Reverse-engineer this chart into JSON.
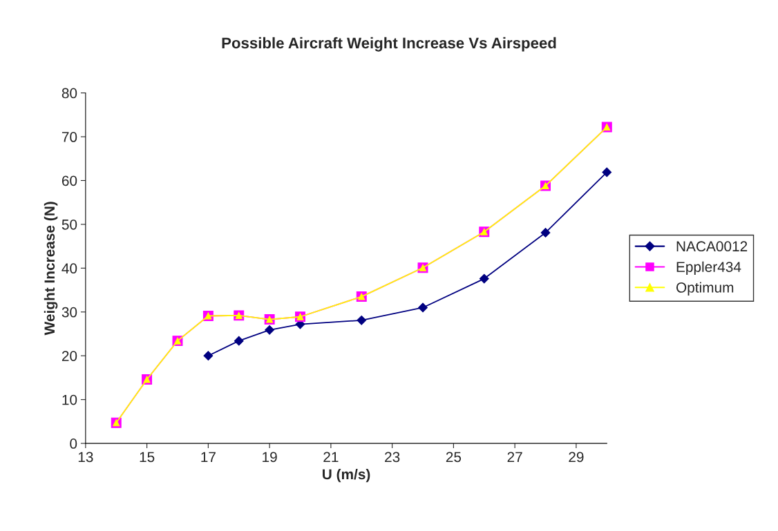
{
  "chart_data": {
    "type": "line",
    "title": "Possible Aircraft Weight Increase Vs Airspeed",
    "xlabel": "U (m/s)",
    "ylabel": "Weight Increase (N)",
    "xlim": [
      13,
      30
    ],
    "xticks": [
      13,
      15,
      17,
      19,
      21,
      23,
      25,
      27,
      29
    ],
    "ylim": [
      0,
      80
    ],
    "yticks": [
      0,
      10,
      20,
      30,
      40,
      50,
      60,
      70,
      80
    ],
    "grid": false,
    "legend": "right",
    "series": [
      {
        "name": "NACA0012",
        "color": "#000080",
        "marker": "diamond",
        "x": [
          17,
          18,
          19,
          20,
          22,
          24,
          26,
          28,
          30
        ],
        "values": [
          20.0,
          23.4,
          25.9,
          27.2,
          28.1,
          31.0,
          37.6,
          48.1,
          61.9
        ]
      },
      {
        "name": "Eppler434",
        "color": "#ff00ff",
        "marker": "square",
        "x": [
          14,
          15,
          16,
          17,
          18,
          19,
          20,
          22,
          24,
          26,
          28,
          30
        ],
        "values": [
          4.7,
          14.6,
          23.4,
          29.1,
          29.2,
          28.3,
          28.9,
          33.5,
          40.1,
          48.3,
          58.8,
          72.2
        ]
      },
      {
        "name": "Optimum",
        "color": "#ffff00",
        "marker": "triangle",
        "x": [
          14,
          15,
          16,
          17,
          18,
          19,
          20,
          22,
          24,
          26,
          28,
          30
        ],
        "values": [
          4.7,
          14.6,
          23.4,
          29.1,
          29.2,
          28.3,
          28.9,
          33.5,
          40.1,
          48.3,
          58.8,
          72.2
        ]
      }
    ]
  }
}
